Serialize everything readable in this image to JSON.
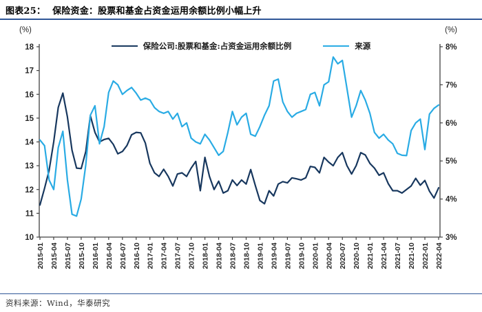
{
  "header": {
    "fig_label": "图表25：",
    "title": "保险资金：股票和基金占资金运用余额比例小幅上升"
  },
  "footer": {
    "source": "资料来源：Wind，华泰研究"
  },
  "accent_rule_color": "#2e5597",
  "chart_data": {
    "type": "line",
    "title": "保险资金：股票和基金占资金运用余额比例小幅上升",
    "grid": false,
    "legend_position": "top-center",
    "left_axis": {
      "unit_label": "(%)",
      "min": 10,
      "max": 18,
      "tick_labels": [
        "10",
        "11",
        "12",
        "13",
        "14",
        "15",
        "16",
        "17",
        "18"
      ]
    },
    "right_axis": {
      "unit_label": "(%)",
      "min": 3,
      "max": 8,
      "tick_labels": [
        "3%",
        "4%",
        "5%",
        "6%",
        "7%",
        "8%"
      ]
    },
    "x_tick_labels": [
      "2015-01",
      "2015-04",
      "2015-07",
      "2015-10",
      "2016-01",
      "2016-04",
      "2016-07",
      "2016-10",
      "2017-01",
      "2017-04",
      "2017-07",
      "2017-10",
      "2018-01",
      "2018-04",
      "2018-07",
      "2018-10",
      "2019-01",
      "2019-04",
      "2019-07",
      "2019-10",
      "2020-01",
      "2020-04",
      "2020-07",
      "2020-10",
      "2021-01",
      "2021-04",
      "2021-07",
      "2021-10",
      "2022-01",
      "2022-04"
    ],
    "tick_every": 3,
    "series": [
      {
        "name": "保险公司:股票和基金:占资金运用余额比例",
        "axis": "left",
        "color": "#17375e",
        "values": [
          11.35,
          12.05,
          12.8,
          14.0,
          15.45,
          16.05,
          15.05,
          13.65,
          12.9,
          12.88,
          13.6,
          15.1,
          14.4,
          14.0,
          14.1,
          14.15,
          13.9,
          13.5,
          13.6,
          13.85,
          14.3,
          14.4,
          14.38,
          13.95,
          13.1,
          12.7,
          12.55,
          12.85,
          12.55,
          12.15,
          12.65,
          12.7,
          12.55,
          12.9,
          13.18,
          11.95,
          13.35,
          12.55,
          12.0,
          12.35,
          11.85,
          11.95,
          12.4,
          12.17,
          12.4,
          12.23,
          12.84,
          12.17,
          11.54,
          11.4,
          11.95,
          11.73,
          12.23,
          12.33,
          12.28,
          12.49,
          12.45,
          12.4,
          12.49,
          12.97,
          12.93,
          12.7,
          13.35,
          13.15,
          13.0,
          13.35,
          13.55,
          13.0,
          12.65,
          13.0,
          13.55,
          13.45,
          13.1,
          12.9,
          12.6,
          12.7,
          12.25,
          11.95,
          11.95,
          11.85,
          12.0,
          12.15,
          12.47,
          12.18,
          12.38,
          11.93,
          11.64,
          12.07
        ]
      },
      {
        "name": "来源",
        "axis": "right",
        "color": "#29abe4",
        "values": [
          5.55,
          5.4,
          4.5,
          4.25,
          5.35,
          5.78,
          4.5,
          3.6,
          3.55,
          4.0,
          4.9,
          6.2,
          6.45,
          5.45,
          5.9,
          6.8,
          7.1,
          7.0,
          6.75,
          6.85,
          6.93,
          6.78,
          6.6,
          6.65,
          6.6,
          6.4,
          6.3,
          6.25,
          6.3,
          6.1,
          6.25,
          5.9,
          6.0,
          5.6,
          5.5,
          5.45,
          5.7,
          5.55,
          5.35,
          5.15,
          5.25,
          5.75,
          6.3,
          5.95,
          6.15,
          6.25,
          5.7,
          5.65,
          5.9,
          6.2,
          6.45,
          7.1,
          7.15,
          6.55,
          6.3,
          6.15,
          6.25,
          6.3,
          6.35,
          6.75,
          6.8,
          6.45,
          7.0,
          7.08,
          7.73,
          7.55,
          7.64,
          6.9,
          6.15,
          6.45,
          6.85,
          6.6,
          6.25,
          5.75,
          5.6,
          5.7,
          5.55,
          5.45,
          5.2,
          5.15,
          5.14,
          5.8,
          6.0,
          6.1,
          5.3,
          6.23,
          6.38,
          6.47
        ]
      }
    ]
  }
}
